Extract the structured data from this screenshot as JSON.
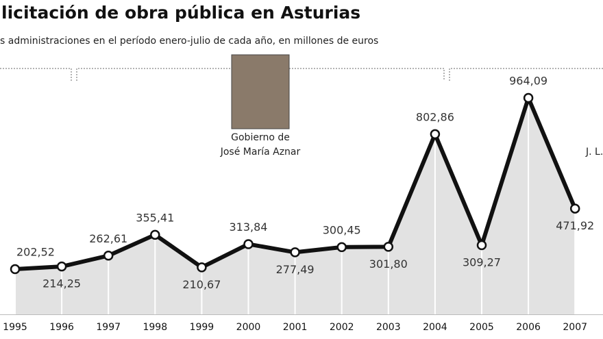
{
  "chart_data": {
    "type": "line",
    "title": "licitación de obra pública en Asturias",
    "subtitle": "s administraciones en el período enero-julio de cada año, en millones de euros",
    "annotations": [
      "Gobierno de",
      "José María Aznar",
      "J. L."
    ],
    "categories": [
      "1995",
      "1996",
      "1997",
      "1998",
      "1999",
      "2000",
      "2001",
      "2002",
      "2003",
      "2004",
      "2005",
      "2006",
      "2007"
    ],
    "values": [
      202.52,
      214.25,
      262.61,
      355.41,
      210.67,
      313.84,
      277.49,
      300.45,
      301.8,
      802.86,
      309.27,
      964.09,
      471.92
    ],
    "value_labels": [
      "202,52",
      "214,25",
      "262,61",
      "355,41",
      "210,67",
      "313,84",
      "277,49",
      "300,45",
      "301,80",
      "802,86",
      "309,27",
      "964,09",
      "471,92"
    ],
    "color": "#111111",
    "area_color": "#e2e2e2"
  }
}
